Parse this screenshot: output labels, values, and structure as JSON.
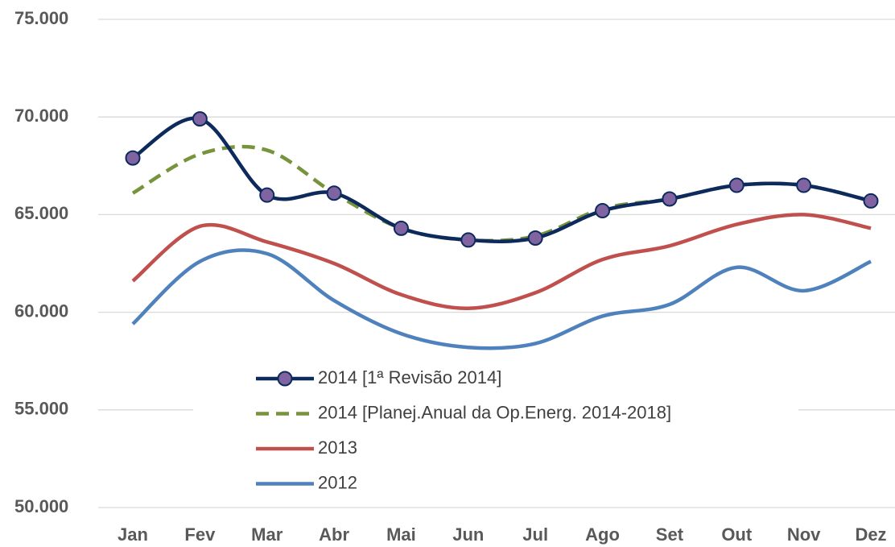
{
  "chart_data": {
    "type": "line",
    "categories": [
      "Jan",
      "Fev",
      "Mar",
      "Abr",
      "Mai",
      "Jun",
      "Jul",
      "Ago",
      "Set",
      "Out",
      "Nov",
      "Dez"
    ],
    "series": [
      {
        "name": "2014 [1ª Revisão 2014]",
        "color": "#0d2a5c",
        "marker": true,
        "marker_color": "#8064a2",
        "values": [
          67900,
          69900,
          66000,
          66100,
          64300,
          63700,
          63800,
          65200,
          65800,
          66500,
          66500,
          65700
        ]
      },
      {
        "name": "2014 [Planej.Anual da Op.Energ. 2014-2018]",
        "color": "#77933c",
        "dashed": true,
        "values": [
          66100,
          68100,
          68300,
          66100,
          64300,
          63700,
          63900,
          65300,
          65800,
          66500,
          66500,
          65700
        ]
      },
      {
        "name": "2013",
        "color": "#c0504d",
        "values": [
          61600,
          64400,
          63600,
          62500,
          60900,
          60200,
          61000,
          62700,
          63400,
          64500,
          65000,
          64300
        ]
      },
      {
        "name": "2012",
        "color": "#4f81bd",
        "values": [
          59400,
          62600,
          63000,
          60600,
          58900,
          58200,
          58400,
          59800,
          60400,
          62300,
          61100,
          62600
        ]
      }
    ],
    "ylim": [
      50000,
      75000
    ],
    "yticks": [
      {
        "value": 50000,
        "label": "50.000"
      },
      {
        "value": 55000,
        "label": "55.000"
      },
      {
        "value": 60000,
        "label": "60.000"
      },
      {
        "value": 65000,
        "label": "65.000"
      },
      {
        "value": 70000,
        "label": "70.000"
      },
      {
        "value": 75000,
        "label": "75.000"
      }
    ],
    "grid": true,
    "legend": "center"
  }
}
